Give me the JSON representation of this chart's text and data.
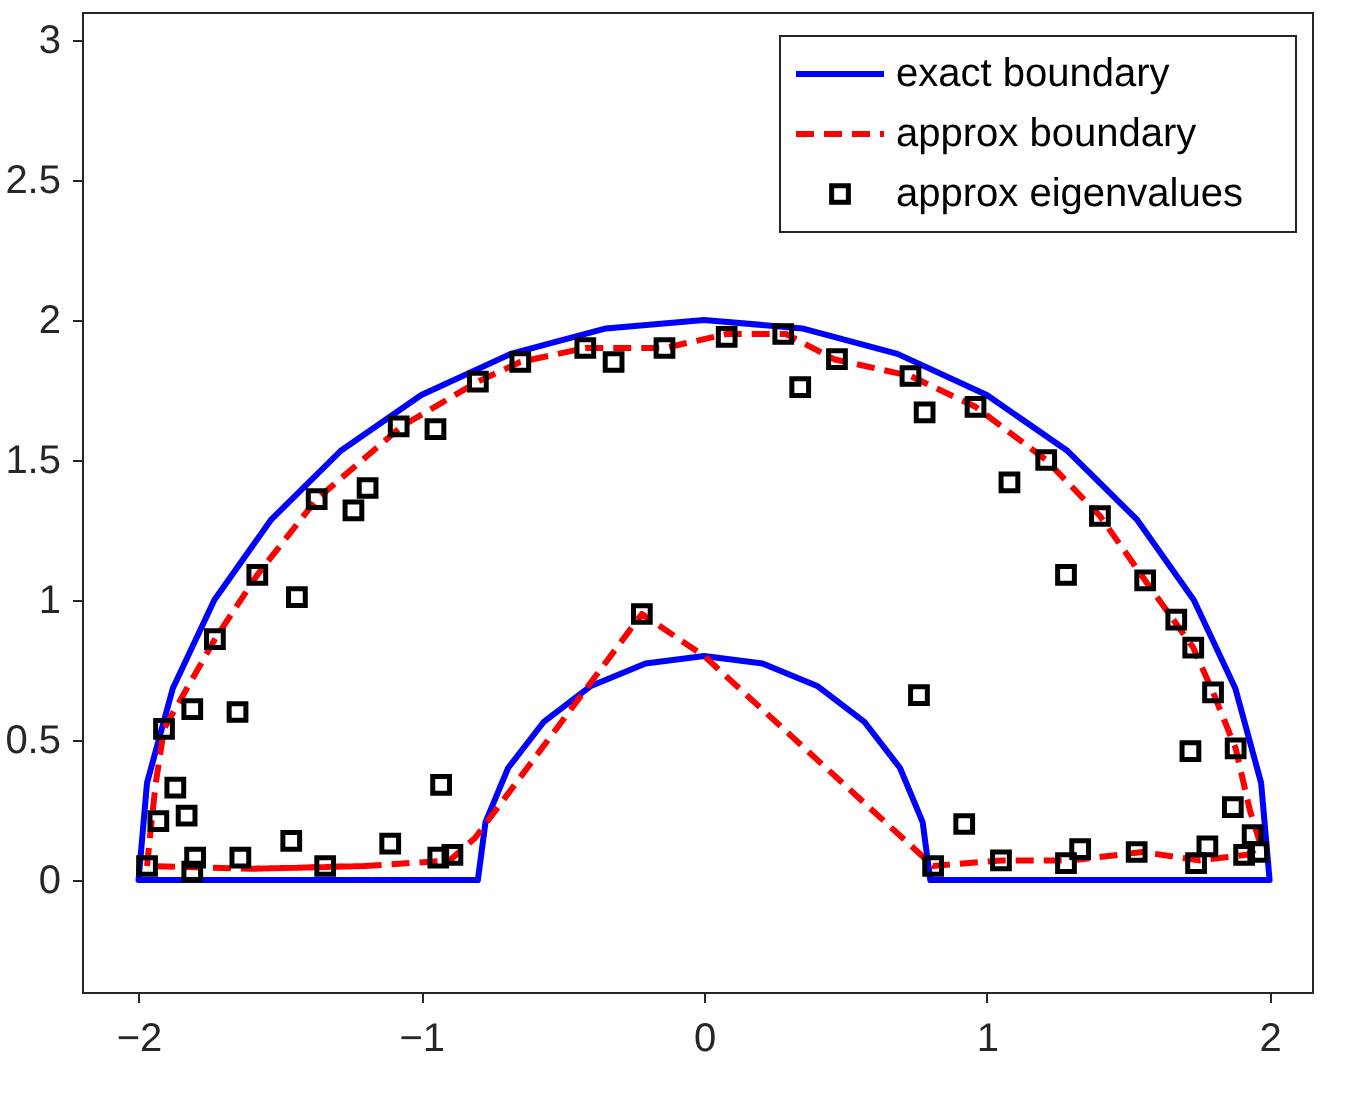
{
  "chart_data": {
    "type": "line",
    "xlim": [
      -2.2,
      2.15
    ],
    "ylim": [
      -0.4,
      3.1
    ],
    "xticks": [
      -2,
      -1,
      0,
      1,
      2
    ],
    "yticks": [
      0,
      0.5,
      1,
      1.5,
      2,
      2.5,
      3
    ],
    "grid": false,
    "legend": "top right",
    "series": [
      {
        "name": "exact boundary",
        "color": "#0000ff",
        "line_style": "solid",
        "x": [
          -2,
          -0.8,
          -0.773,
          -0.693,
          -0.566,
          -0.4,
          -0.207,
          0,
          0.207,
          0.4,
          0.566,
          0.693,
          0.773,
          0.8,
          2,
          1.97,
          1.879,
          1.732,
          1.532,
          1.286,
          1.0,
          0.684,
          0.347,
          0,
          -0.347,
          -0.684,
          -1.0,
          -1.286,
          -1.532,
          -1.732,
          -1.879,
          -1.97,
          -2,
          -1.4
        ],
        "values": [
          0,
          0,
          0.207,
          0.4,
          0.566,
          0.693,
          0.773,
          0.8,
          0.773,
          0.693,
          0.566,
          0.4,
          0.207,
          0,
          0,
          0.347,
          0.684,
          1.0,
          1.286,
          1.532,
          1.732,
          1.879,
          1.97,
          2,
          1.97,
          1.879,
          1.732,
          1.532,
          1.286,
          1.0,
          0.684,
          0.347,
          0,
          0
        ]
      },
      {
        "name": "approx boundary",
        "color": "#ff0000",
        "line_style": "dashed",
        "x": [
          -1.6,
          -1.2,
          -0.9,
          -0.81,
          -0.22,
          0,
          0.81,
          1.05,
          1.3,
          1.55,
          1.75,
          1.92,
          1.97,
          1.93,
          1.88,
          1.8,
          1.73,
          1.56,
          1.4,
          1.21,
          0.96,
          0.73,
          0.46,
          0.29,
          0.08,
          -0.14,
          -0.42,
          -0.65,
          -0.8,
          -1.07,
          -1.37,
          -1.58,
          -1.73,
          -1.91,
          -1.94,
          -1.96,
          -1.97,
          -1.6,
          -1.2
        ],
        "values": [
          0.04,
          0.05,
          0.07,
          0.15,
          0.95,
          0.8,
          0.05,
          0.07,
          0.07,
          0.1,
          0.07,
          0.09,
          0.12,
          0.25,
          0.47,
          0.67,
          0.83,
          1.07,
          1.3,
          1.5,
          1.69,
          1.8,
          1.86,
          1.95,
          1.95,
          1.9,
          1.9,
          1.85,
          1.78,
          1.62,
          1.36,
          1.09,
          0.86,
          0.54,
          0.34,
          0.15,
          0.05,
          0.04,
          0.05
        ]
      },
      {
        "name": "approx eigenvalues",
        "type": "scatter",
        "color": "#000000",
        "marker": "square",
        "x": [
          -1.97,
          -1.81,
          -1.8,
          -1.64,
          -1.34,
          -1.46,
          -1.11,
          -0.94,
          -0.89,
          -0.93,
          -1.93,
          -1.87,
          -1.83,
          -1.91,
          -1.81,
          -1.65,
          -1.73,
          -1.44,
          -1.58,
          -1.24,
          -1.37,
          -1.19,
          -1.08,
          -0.95,
          -0.8,
          -0.65,
          -0.42,
          -0.32,
          -0.14,
          -0.22,
          0.08,
          0.28,
          0.47,
          0.34,
          0.73,
          0.78,
          0.96,
          1.08,
          1.21,
          1.4,
          1.28,
          1.56,
          1.67,
          1.73,
          1.8,
          1.72,
          1.88,
          1.87,
          1.94,
          1.96,
          1.91,
          1.78,
          1.74,
          1.53,
          1.33,
          1.28,
          1.05,
          0.92,
          0.81,
          0.76
        ],
        "values": [
          0.05,
          0.03,
          0.08,
          0.08,
          0.05,
          0.14,
          0.13,
          0.08,
          0.09,
          0.34,
          0.21,
          0.33,
          0.23,
          0.54,
          0.61,
          0.6,
          0.86,
          1.01,
          1.09,
          1.32,
          1.36,
          1.4,
          1.62,
          1.61,
          1.78,
          1.85,
          1.9,
          1.85,
          1.9,
          0.95,
          1.94,
          1.95,
          1.86,
          1.76,
          1.8,
          1.67,
          1.69,
          1.42,
          1.5,
          1.3,
          1.09,
          1.07,
          0.93,
          0.83,
          0.67,
          0.46,
          0.47,
          0.26,
          0.16,
          0.1,
          0.09,
          0.12,
          0.06,
          0.1,
          0.11,
          0.06,
          0.07,
          0.2,
          0.05,
          0.66
        ]
      }
    ]
  }
}
